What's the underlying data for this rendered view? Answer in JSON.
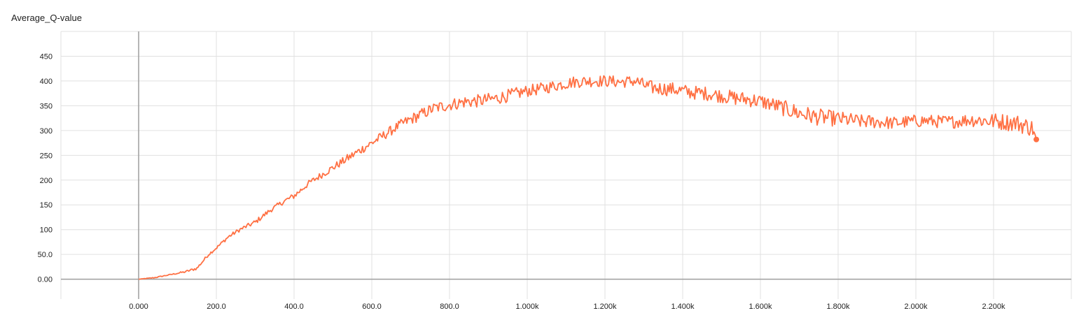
{
  "chart_data": {
    "type": "line",
    "title": "Average_Q-value",
    "xlabel": "",
    "ylabel": "",
    "xlim": [
      -200,
      2400
    ],
    "ylim": [
      -40,
      500
    ],
    "x_ticks": [
      {
        "value": 0,
        "label": "0.000"
      },
      {
        "value": 200,
        "label": "200.0"
      },
      {
        "value": 400,
        "label": "400.0"
      },
      {
        "value": 600,
        "label": "600.0"
      },
      {
        "value": 800,
        "label": "800.0"
      },
      {
        "value": 1000,
        "label": "1.000k"
      },
      {
        "value": 1200,
        "label": "1.200k"
      },
      {
        "value": 1400,
        "label": "1.400k"
      },
      {
        "value": 1600,
        "label": "1.600k"
      },
      {
        "value": 1800,
        "label": "1.800k"
      },
      {
        "value": 2000,
        "label": "2.000k"
      },
      {
        "value": 2200,
        "label": "2.200k"
      }
    ],
    "y_ticks": [
      {
        "value": 0,
        "label": "0.00"
      },
      {
        "value": 50,
        "label": "50.0"
      },
      {
        "value": 100,
        "label": "100"
      },
      {
        "value": 150,
        "label": "150"
      },
      {
        "value": 200,
        "label": "200"
      },
      {
        "value": 250,
        "label": "250"
      },
      {
        "value": 300,
        "label": "300"
      },
      {
        "value": 350,
        "label": "350"
      },
      {
        "value": 400,
        "label": "400"
      },
      {
        "value": 450,
        "label": "450"
      }
    ],
    "grid": true,
    "legend": "none",
    "series": [
      {
        "color": "#ff7043",
        "x": [
          0,
          40,
          80,
          120,
          150,
          180,
          200,
          230,
          260,
          300,
          340,
          380,
          400,
          440,
          480,
          520,
          560,
          600,
          640,
          680,
          720,
          760,
          800,
          840,
          880,
          920,
          960,
          1000,
          1040,
          1080,
          1120,
          1160,
          1200,
          1240,
          1280,
          1310,
          1340,
          1380,
          1420,
          1460,
          1500,
          1540,
          1580,
          1620,
          1660,
          1700,
          1740,
          1780,
          1820,
          1860,
          1900,
          1940,
          1980,
          2020,
          2060,
          2100,
          2140,
          2180,
          2220,
          2260,
          2300,
          2310
        ],
        "y": [
          0,
          3,
          9,
          15,
          22,
          50,
          63,
          85,
          100,
          115,
          140,
          160,
          168,
          195,
          215,
          235,
          255,
          275,
          295,
          315,
          330,
          345,
          352,
          358,
          360,
          365,
          372,
          380,
          385,
          392,
          398,
          400,
          400,
          398,
          400,
          388,
          385,
          383,
          377,
          375,
          370,
          365,
          362,
          355,
          345,
          335,
          328,
          325,
          322,
          318,
          318,
          315,
          318,
          320,
          318,
          318,
          322,
          320,
          318,
          315,
          305,
          282
        ]
      }
    ],
    "noise": [
      0,
      1,
      1,
      2,
      3,
      3,
      3,
      4,
      4,
      5,
      5,
      5,
      6,
      6,
      7,
      8,
      9,
      9,
      10,
      10,
      12,
      12,
      12,
      13,
      13,
      13,
      13,
      12,
      12,
      12,
      12,
      12,
      12,
      12,
      12,
      14,
      14,
      14,
      14,
      14,
      14,
      15,
      15,
      15,
      16,
      18,
      17,
      16,
      15,
      14,
      14,
      13,
      13,
      13,
      13,
      13,
      14,
      16,
      17,
      18,
      18,
      0
    ]
  }
}
